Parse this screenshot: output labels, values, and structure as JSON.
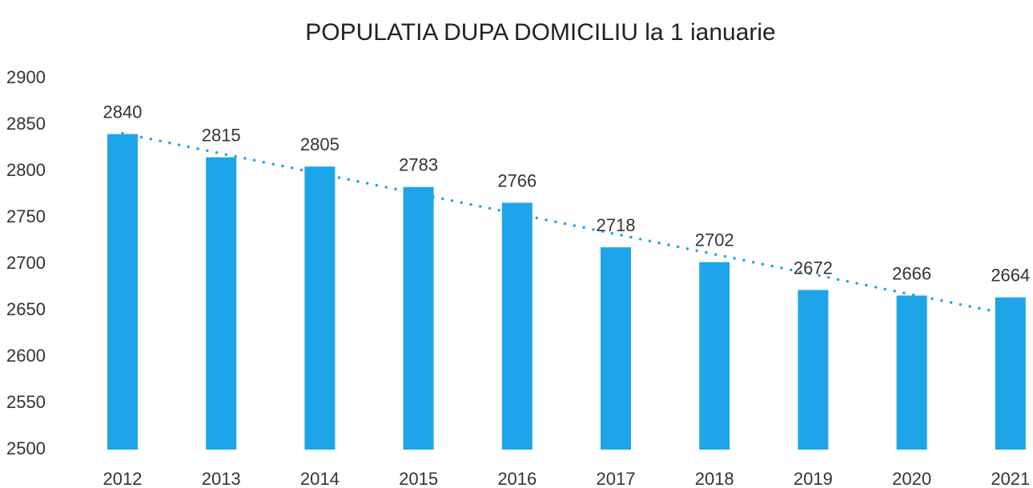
{
  "chart_data": {
    "type": "bar",
    "title": "POPULATIA DUPA DOMICILIU la 1 ianuarie",
    "categories": [
      "2012",
      "2013",
      "2014",
      "2015",
      "2016",
      "2017",
      "2018",
      "2019",
      "2020",
      "2021"
    ],
    "values": [
      2840,
      2815,
      2805,
      2783,
      2766,
      2718,
      2702,
      2672,
      2666,
      2664
    ],
    "color": "#1ea5e9",
    "ylim": [
      2500,
      2900
    ],
    "yticks": [
      2500,
      2550,
      2600,
      2650,
      2700,
      2750,
      2800,
      2850,
      2900
    ],
    "grid": false,
    "trendline": "linear"
  }
}
